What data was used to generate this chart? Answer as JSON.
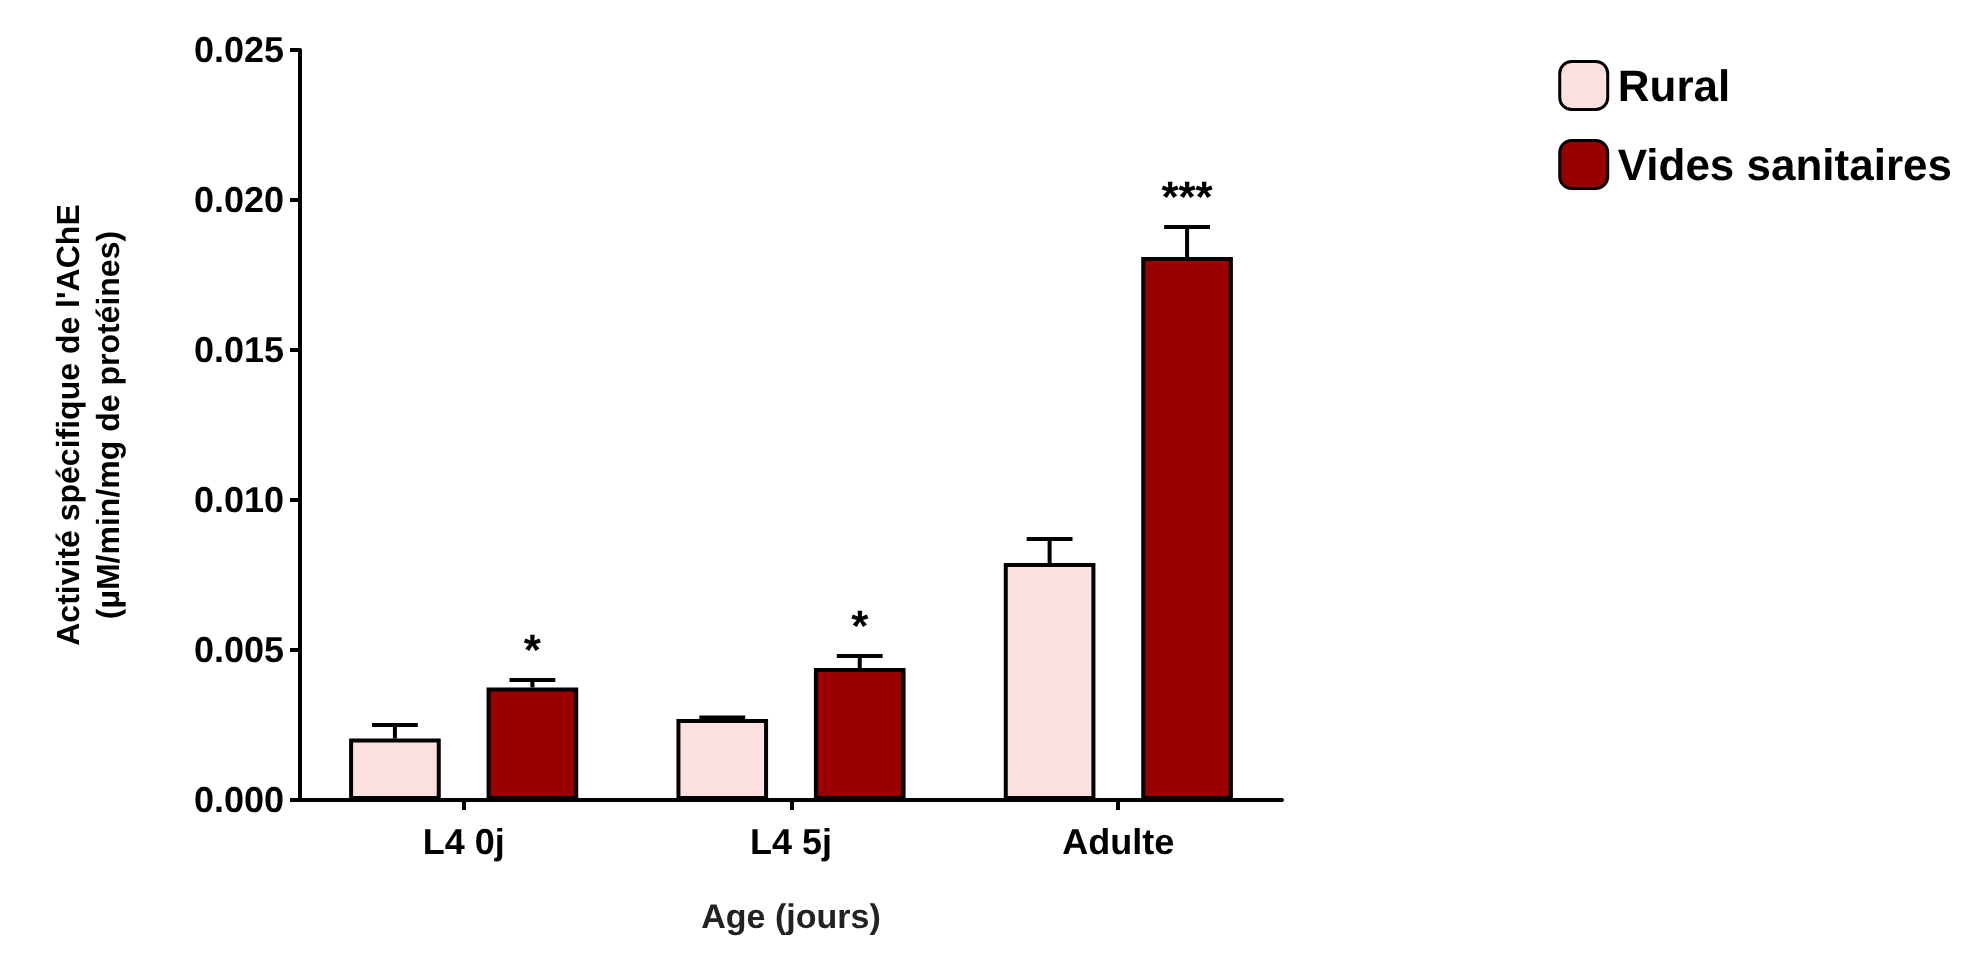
{
  "chart_data": {
    "type": "bar",
    "xlabel": "Age (jours)",
    "ylabel": "Activité spécifique de l'AChE\n(µM/min/mg de protéines)",
    "categories": [
      "L4 0j",
      "L4 5j",
      "Adulte"
    ],
    "series": [
      {
        "name": "Rural",
        "color": "#fde0e0",
        "values": [
          0.00205,
          0.0027,
          0.0079
        ],
        "errors": [
          0.00045,
          5e-05,
          0.0008
        ]
      },
      {
        "name": "Vides sanitaires",
        "color": "#9b0000",
        "values": [
          0.00375,
          0.0044,
          0.0181
        ],
        "errors": [
          0.00025,
          0.0004,
          0.001
        ]
      }
    ],
    "ylim": [
      0,
      0.025
    ],
    "yticks": [
      {
        "value": 0,
        "label": "0.000"
      },
      {
        "value": 0.005,
        "label": "0.005"
      },
      {
        "value": 0.01,
        "label": "0.010"
      },
      {
        "value": 0.015,
        "label": "0.015"
      },
      {
        "value": 0.02,
        "label": "0.020"
      },
      {
        "value": 0.025,
        "label": "0.025"
      }
    ],
    "annotations": [
      "*",
      "*",
      "***"
    ],
    "legend": "top right",
    "grid": false
  }
}
